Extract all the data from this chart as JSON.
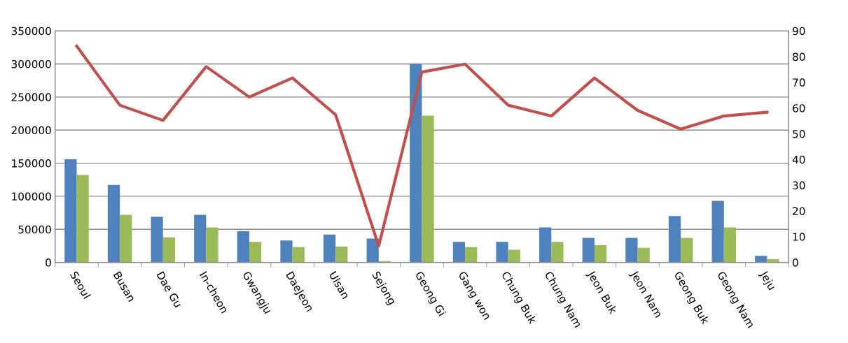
{
  "chart_data": {
    "type": "bar",
    "categories": [
      "Seoul",
      "Busan",
      "Dae Gu",
      "In-cheon",
      "Gwangju",
      "DaeJeon",
      "Ulsan",
      "Sejong",
      "Geong Gi",
      "Gang won",
      "Chung Buk",
      "Chung Nam",
      "Jeon Buk",
      "Jeon Nam",
      "Geong Buk",
      "Geong Nam",
      "Jeju"
    ],
    "series": [
      {
        "color": "#4f81bd",
        "values": [
          156000,
          117000,
          69000,
          72000,
          47000,
          33000,
          42000,
          36000,
          300000,
          31000,
          31000,
          53000,
          37000,
          37000,
          70000,
          93000,
          10000
        ]
      },
      {
        "color": "#9bbb59",
        "values": [
          132000,
          72000,
          38000,
          53000,
          31000,
          23000,
          24000,
          2000,
          222000,
          23000,
          19000,
          31000,
          26000,
          22000,
          37000,
          53000,
          5000
        ]
      },
      {
        "type": "line",
        "axis": "y2",
        "color": "#c0504d",
        "values": [
          84.1,
          61.1,
          55.2,
          76.1,
          64.3,
          71.7,
          57.4,
          6.4,
          74.0,
          77.1,
          61.1,
          56.9,
          71.7,
          59.1,
          51.8,
          56.9,
          58.4
        ]
      }
    ],
    "ylim": [
      0,
      350000
    ],
    "yticks": [
      0,
      50000,
      100000,
      150000,
      200000,
      250000,
      300000,
      350000
    ],
    "y2lim": [
      0,
      90
    ],
    "y2ticks": [
      0,
      10,
      20,
      30,
      40,
      50,
      60,
      70,
      80,
      90
    ],
    "grid": "y",
    "marker": "none",
    "line_style": "solid"
  }
}
